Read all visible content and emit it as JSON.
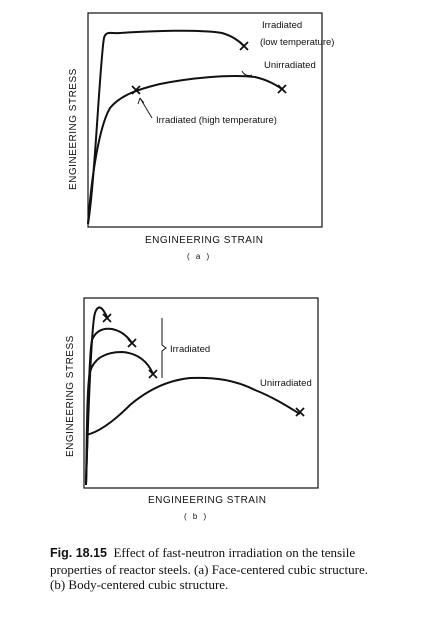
{
  "figure_a": {
    "ylabel": "ENGINEERING STRESS",
    "xlabel": "ENGINEERING STRAIN",
    "sublabel": "( a )",
    "label_irradiated_low_1": "Irradiated",
    "label_irradiated_low_2": "(low temperature)",
    "label_unirradiated": "Unirradiated",
    "label_irradiated_high": "Irradiated (high temperature)"
  },
  "figure_b": {
    "ylabel": "ENGINEERING STRESS",
    "xlabel": "ENGINEERING STRAIN",
    "sublabel": "( b )",
    "label_irradiated": "Irradiated",
    "label_unirradiated": "Unirradiated"
  },
  "caption": {
    "number": "Fig. 18.15",
    "text": "Effect of fast-neutron irradiation on the tensile properties of reactor steels. (a) Face-centered cubic structure. (b) Body-centered cubic structure."
  }
}
